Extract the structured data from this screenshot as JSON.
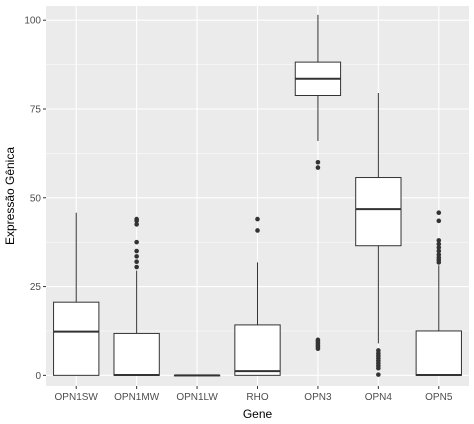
{
  "chart_data": {
    "type": "box",
    "title": "",
    "xlabel": "Gene",
    "ylabel": "Expressão Gênica",
    "ylim": [
      -3,
      104
    ],
    "yticks": [
      0,
      25,
      50,
      75,
      100
    ],
    "grid": true,
    "legend": "none",
    "colors": {
      "panel": "#ebebeb",
      "grid_major": "#ffffff",
      "box_fill": "#ffffff",
      "box_line": "#333333",
      "tick_text": "#4d4d4d"
    },
    "categories": [
      "OPN1SW",
      "OPN1MW",
      "OPN1LW",
      "RHO",
      "OPN3",
      "OPN4",
      "OPN5"
    ],
    "boxes": [
      {
        "category": "OPN1SW",
        "lower_whisker": 0,
        "q1": 0,
        "median": 12.3,
        "q3": 20.6,
        "upper_whisker": 45.8,
        "outliers": []
      },
      {
        "category": "OPN1MW",
        "lower_whisker": 0,
        "q1": 0,
        "median": 0.1,
        "q3": 11.8,
        "upper_whisker": 29.5,
        "outliers": [
          30.5,
          32,
          33.5,
          35,
          37.5,
          42.5,
          43.5,
          44
        ]
      },
      {
        "category": "OPN1LW",
        "lower_whisker": 0,
        "q1": 0,
        "median": 0,
        "q3": 0,
        "upper_whisker": 0,
        "outliers": []
      },
      {
        "category": "RHO",
        "lower_whisker": 0,
        "q1": 0,
        "median": 1.2,
        "q3": 14.2,
        "upper_whisker": 31.8,
        "outliers": [
          40.8,
          44
        ]
      },
      {
        "category": "OPN3",
        "lower_whisker": 66,
        "q1": 78.8,
        "median": 83.5,
        "q3": 88.2,
        "upper_whisker": 101.5,
        "outliers": [
          58.5,
          60,
          7.5,
          8,
          8.5,
          9,
          9.5,
          10
        ]
      },
      {
        "category": "OPN4",
        "lower_whisker": 9,
        "q1": 36.5,
        "median": 46.8,
        "q3": 55.7,
        "upper_whisker": 79.5,
        "outliers": [
          0.2,
          2,
          2.7,
          3.4,
          4.1,
          4.8,
          5.5,
          6.2,
          7
        ]
      },
      {
        "category": "OPN5",
        "lower_whisker": 0,
        "q1": 0,
        "median": 0.1,
        "q3": 12.5,
        "upper_whisker": 31,
        "outliers": [
          31.8,
          32.5,
          33.2,
          34,
          35,
          36,
          37,
          38,
          43.5,
          45.8
        ]
      }
    ]
  }
}
